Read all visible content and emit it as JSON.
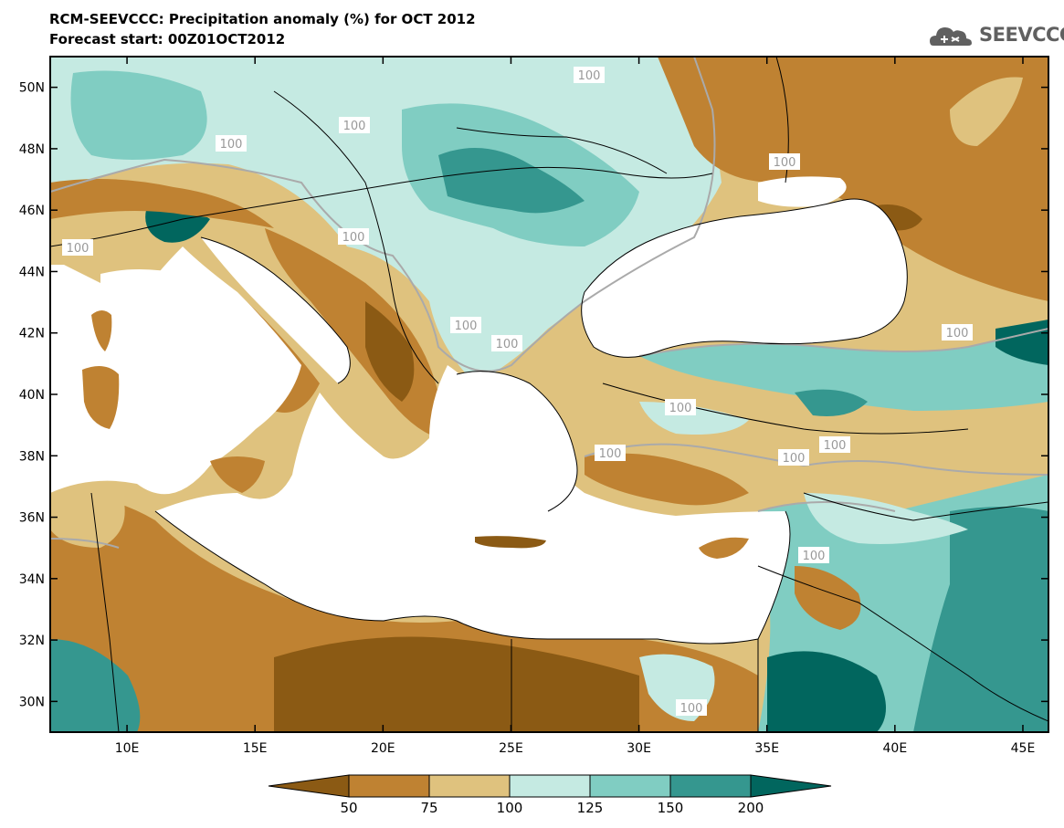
{
  "header": {
    "title": "RCM-SEEVCCC: Precipitation anomaly (%) for OCT 2012",
    "subtitle": "Forecast start: 00Z01OCT2012"
  },
  "logo": {
    "text": "SEEVCCC"
  },
  "map": {
    "type": "contour-map",
    "variable": "Precipitation anomaly (%)",
    "lon_range": [
      7,
      46
    ],
    "lat_range": [
      29,
      51
    ],
    "lat_ticks": [
      "50N",
      "48N",
      "46N",
      "44N",
      "42N",
      "40N",
      "38N",
      "36N",
      "34N",
      "32N",
      "30N"
    ],
    "lon_ticks": [
      "10E",
      "15E",
      "20E",
      "25E",
      "30E",
      "35E",
      "40E",
      "45E"
    ],
    "contour_labels": [
      "100",
      "100",
      "100",
      "100",
      "100",
      "100",
      "100",
      "100",
      "100",
      "100",
      "100",
      "100",
      "100",
      "100",
      "100"
    ],
    "colors": {
      "lt50": "#8b5a14",
      "c50_75": "#bf8232",
      "c75_100": "#dfc27e",
      "c100_125": "#c5eae2",
      "c125_150": "#80cdc2",
      "c150_200": "#35978f",
      "gt200": "#01665e",
      "sea": "#ffffff"
    }
  },
  "colorbar": {
    "labels": [
      "50",
      "75",
      "100",
      "125",
      "150",
      "200"
    ],
    "colors": [
      "#8b5a14",
      "#bf8232",
      "#dfc27e",
      "#c5eae2",
      "#80cdc2",
      "#35978f",
      "#01665e"
    ]
  }
}
